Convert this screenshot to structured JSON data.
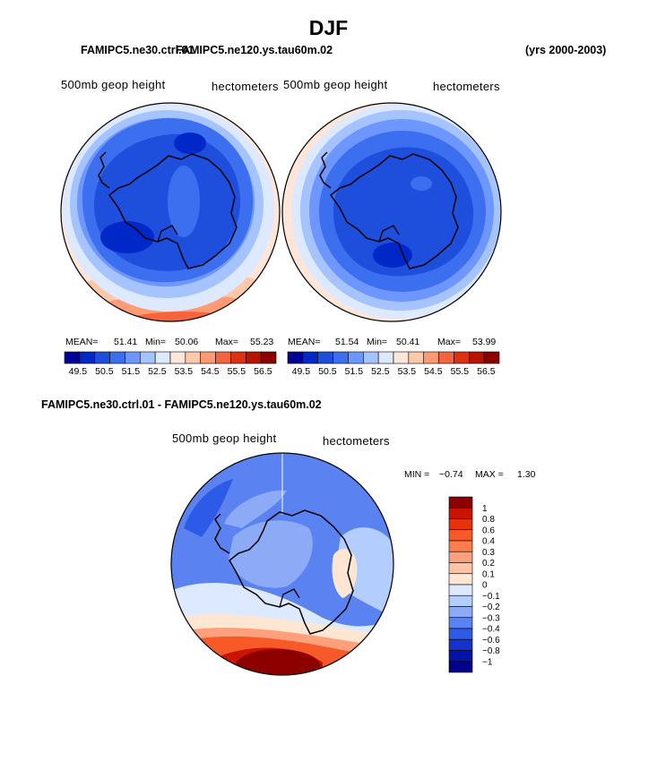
{
  "page": {
    "season": "DJF",
    "case_a_overlapped_title": "FAMIPC5.ne30.ctrl.01",
    "case_b_overlapped_title": "FAMIPC5.ne120.ys.tau60m.02",
    "case_b_years": "(yrs 2000-2003)",
    "diff_title": "FAMIPC5.ne30.ctrl.01 - FAMIPC5.ne120.ys.tau60m.02"
  },
  "chart_data": [
    {
      "type": "contour-map",
      "projection": "south-polar-stereographic",
      "title": "500mb geop height",
      "units": "hectometers",
      "stats": {
        "mean_label": "MEAN=",
        "mean": "51.41",
        "min_label": "Min=",
        "min": "50.06",
        "max_label": "Max=",
        "max": "55.23"
      },
      "levels": [
        "49.5",
        "50.5",
        "51.5",
        "52.5",
        "53.5",
        "54.5",
        "55.5",
        "56.5"
      ],
      "colors": [
        "#000096",
        "#0028c8",
        "#1e4fdc",
        "#3c6ef0",
        "#6e96ff",
        "#a5c3ff",
        "#dce9ff",
        "#ffe6d8",
        "#ffc8aa",
        "#ff9b73",
        "#f5643c",
        "#dc3214",
        "#b41400",
        "#8c0000"
      ],
      "fill_order": [
        "#ffe6d8",
        "#dce9ff",
        "#a5c3ff",
        "#6e96ff",
        "#3c6ef0",
        "#1e4fdc"
      ]
    },
    {
      "type": "contour-map",
      "projection": "south-polar-stereographic",
      "title": "500mb geop height",
      "units": "hectometers",
      "stats": {
        "mean_label": "MEAN=",
        "mean": "51.54",
        "min_label": "Min=",
        "min": "50.41",
        "max_label": "Max=",
        "max": "53.99"
      },
      "levels": [
        "49.5",
        "50.5",
        "51.5",
        "52.5",
        "53.5",
        "54.5",
        "55.5",
        "56.5"
      ],
      "colors": [
        "#000096",
        "#0028c8",
        "#1e4fdc",
        "#3c6ef0",
        "#6e96ff",
        "#a5c3ff",
        "#dce9ff",
        "#ffe6d8",
        "#ffc8aa",
        "#ff9b73",
        "#f5643c",
        "#dc3214",
        "#b41400",
        "#8c0000"
      ]
    },
    {
      "type": "contour-map",
      "projection": "south-polar-stereographic",
      "title": "500mb geop height",
      "units": "hectometers",
      "stats": {
        "min_label": "MIN =",
        "min": "−0.74",
        "max_label": "MAX =",
        "max": "1.30"
      },
      "levels": [
        "1",
        "0.8",
        "0.6",
        "0.4",
        "0.3",
        "0.2",
        "0.1",
        "0",
        "−0.1",
        "−0.2",
        "−0.3",
        "−0.4",
        "−0.6",
        "−0.8",
        "−1"
      ],
      "colors": [
        "#8c0000",
        "#c81400",
        "#e6320a",
        "#f55a28",
        "#ff7d4b",
        "#ffa07d",
        "#ffc3a5",
        "#ffe6d2",
        "#dce9ff",
        "#b4cdff",
        "#8caaf5",
        "#5a82f0",
        "#2d5ae6",
        "#1432cd",
        "#0014aa",
        "#00008c"
      ]
    }
  ]
}
